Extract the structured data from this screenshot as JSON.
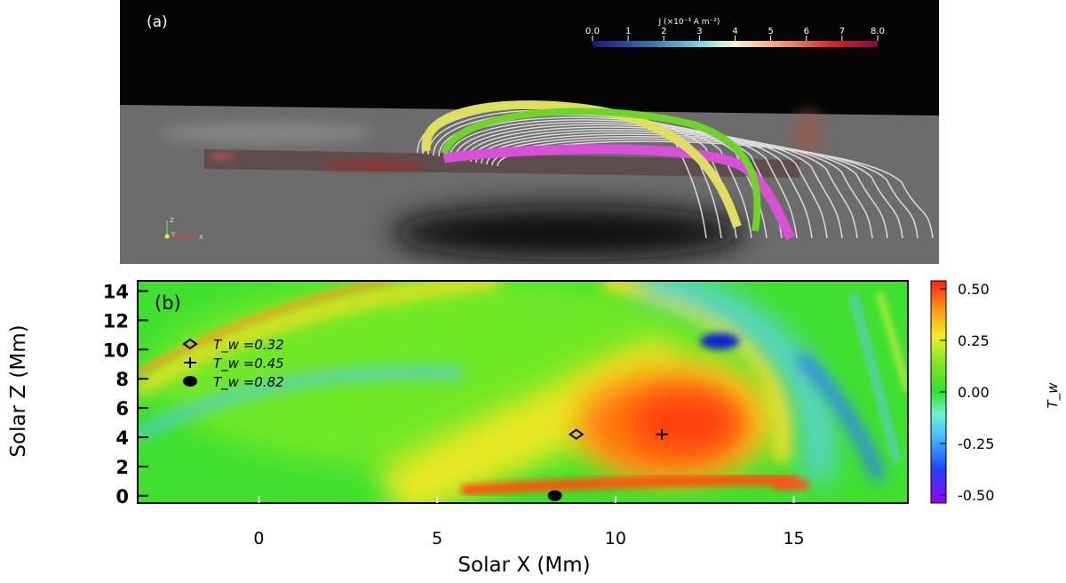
{
  "chart_data": [
    {
      "type": "other",
      "panel_label": "(a)",
      "colorbar": {
        "label": "J (×10⁻³ A m⁻²)",
        "ticks": [
          "0.0",
          "1",
          "2",
          "3",
          "4",
          "5",
          "6",
          "7",
          "8.0"
        ],
        "range": [
          0,
          8
        ],
        "colors": [
          "#1a1a6e",
          "#3b6fa8",
          "#7fd6e0",
          "#fff3d6",
          "#f0a07a",
          "#c62828",
          "#7a1040"
        ]
      },
      "axes_triad": [
        "Z",
        "Y",
        "X"
      ],
      "field_line_colors": {
        "yellow": "#e0e060",
        "green": "#6ed42a",
        "magenta": "#d850d8",
        "white": "#e8e8e8"
      }
    },
    {
      "type": "heatmap",
      "panel_label": "(b)",
      "xlabel": "Solar X (Mm)",
      "ylabel": "Solar Z (Mm)",
      "xlim": [
        -3.4,
        18.2
      ],
      "ylim": [
        -0.5,
        14.7
      ],
      "xticks": [
        0,
        5,
        10,
        15
      ],
      "yticks": [
        0,
        2,
        4,
        6,
        8,
        10,
        12,
        14
      ],
      "colorbar": {
        "label": "T_w",
        "ticks": [
          "0.50",
          "0.25",
          "0.00",
          "-0.25",
          "-0.50"
        ],
        "range": [
          -0.5,
          0.5
        ]
      },
      "markers": [
        {
          "symbol": "diamond",
          "label": "T_w =0.32",
          "x": 8.9,
          "y": 4.2
        },
        {
          "symbol": "plus",
          "label": "T_w =0.45",
          "x": 11.3,
          "y": 4.2
        },
        {
          "symbol": "dot",
          "label": "T_w =0.82",
          "x": 8.3,
          "y": 0.0
        }
      ]
    }
  ]
}
